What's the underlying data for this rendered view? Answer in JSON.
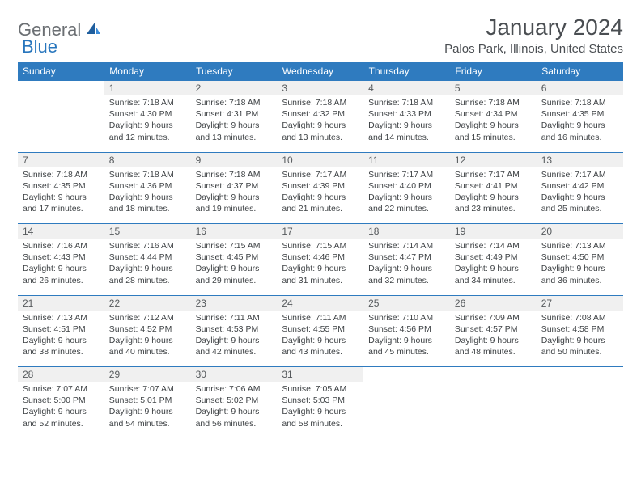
{
  "logo": {
    "gray": "General",
    "blue": "Blue"
  },
  "title": "January 2024",
  "location": "Palos Park, Illinois, United States",
  "colors": {
    "header_bg": "#2f7bbf",
    "header_text": "#ffffff",
    "daynum_bg": "#f0f0f0",
    "border": "#2f7bbf",
    "logo_gray": "#6b6f73",
    "logo_blue": "#2876bd"
  },
  "dayHeaders": [
    "Sunday",
    "Monday",
    "Tuesday",
    "Wednesday",
    "Thursday",
    "Friday",
    "Saturday"
  ],
  "weeks": [
    [
      {
        "num": "",
        "lines": []
      },
      {
        "num": "1",
        "lines": [
          "Sunrise: 7:18 AM",
          "Sunset: 4:30 PM",
          "Daylight: 9 hours and 12 minutes."
        ]
      },
      {
        "num": "2",
        "lines": [
          "Sunrise: 7:18 AM",
          "Sunset: 4:31 PM",
          "Daylight: 9 hours and 13 minutes."
        ]
      },
      {
        "num": "3",
        "lines": [
          "Sunrise: 7:18 AM",
          "Sunset: 4:32 PM",
          "Daylight: 9 hours and 13 minutes."
        ]
      },
      {
        "num": "4",
        "lines": [
          "Sunrise: 7:18 AM",
          "Sunset: 4:33 PM",
          "Daylight: 9 hours and 14 minutes."
        ]
      },
      {
        "num": "5",
        "lines": [
          "Sunrise: 7:18 AM",
          "Sunset: 4:34 PM",
          "Daylight: 9 hours and 15 minutes."
        ]
      },
      {
        "num": "6",
        "lines": [
          "Sunrise: 7:18 AM",
          "Sunset: 4:35 PM",
          "Daylight: 9 hours and 16 minutes."
        ]
      }
    ],
    [
      {
        "num": "7",
        "lines": [
          "Sunrise: 7:18 AM",
          "Sunset: 4:35 PM",
          "Daylight: 9 hours and 17 minutes."
        ]
      },
      {
        "num": "8",
        "lines": [
          "Sunrise: 7:18 AM",
          "Sunset: 4:36 PM",
          "Daylight: 9 hours and 18 minutes."
        ]
      },
      {
        "num": "9",
        "lines": [
          "Sunrise: 7:18 AM",
          "Sunset: 4:37 PM",
          "Daylight: 9 hours and 19 minutes."
        ]
      },
      {
        "num": "10",
        "lines": [
          "Sunrise: 7:17 AM",
          "Sunset: 4:39 PM",
          "Daylight: 9 hours and 21 minutes."
        ]
      },
      {
        "num": "11",
        "lines": [
          "Sunrise: 7:17 AM",
          "Sunset: 4:40 PM",
          "Daylight: 9 hours and 22 minutes."
        ]
      },
      {
        "num": "12",
        "lines": [
          "Sunrise: 7:17 AM",
          "Sunset: 4:41 PM",
          "Daylight: 9 hours and 23 minutes."
        ]
      },
      {
        "num": "13",
        "lines": [
          "Sunrise: 7:17 AM",
          "Sunset: 4:42 PM",
          "Daylight: 9 hours and 25 minutes."
        ]
      }
    ],
    [
      {
        "num": "14",
        "lines": [
          "Sunrise: 7:16 AM",
          "Sunset: 4:43 PM",
          "Daylight: 9 hours and 26 minutes."
        ]
      },
      {
        "num": "15",
        "lines": [
          "Sunrise: 7:16 AM",
          "Sunset: 4:44 PM",
          "Daylight: 9 hours and 28 minutes."
        ]
      },
      {
        "num": "16",
        "lines": [
          "Sunrise: 7:15 AM",
          "Sunset: 4:45 PM",
          "Daylight: 9 hours and 29 minutes."
        ]
      },
      {
        "num": "17",
        "lines": [
          "Sunrise: 7:15 AM",
          "Sunset: 4:46 PM",
          "Daylight: 9 hours and 31 minutes."
        ]
      },
      {
        "num": "18",
        "lines": [
          "Sunrise: 7:14 AM",
          "Sunset: 4:47 PM",
          "Daylight: 9 hours and 32 minutes."
        ]
      },
      {
        "num": "19",
        "lines": [
          "Sunrise: 7:14 AM",
          "Sunset: 4:49 PM",
          "Daylight: 9 hours and 34 minutes."
        ]
      },
      {
        "num": "20",
        "lines": [
          "Sunrise: 7:13 AM",
          "Sunset: 4:50 PM",
          "Daylight: 9 hours and 36 minutes."
        ]
      }
    ],
    [
      {
        "num": "21",
        "lines": [
          "Sunrise: 7:13 AM",
          "Sunset: 4:51 PM",
          "Daylight: 9 hours and 38 minutes."
        ]
      },
      {
        "num": "22",
        "lines": [
          "Sunrise: 7:12 AM",
          "Sunset: 4:52 PM",
          "Daylight: 9 hours and 40 minutes."
        ]
      },
      {
        "num": "23",
        "lines": [
          "Sunrise: 7:11 AM",
          "Sunset: 4:53 PM",
          "Daylight: 9 hours and 42 minutes."
        ]
      },
      {
        "num": "24",
        "lines": [
          "Sunrise: 7:11 AM",
          "Sunset: 4:55 PM",
          "Daylight: 9 hours and 43 minutes."
        ]
      },
      {
        "num": "25",
        "lines": [
          "Sunrise: 7:10 AM",
          "Sunset: 4:56 PM",
          "Daylight: 9 hours and 45 minutes."
        ]
      },
      {
        "num": "26",
        "lines": [
          "Sunrise: 7:09 AM",
          "Sunset: 4:57 PM",
          "Daylight: 9 hours and 48 minutes."
        ]
      },
      {
        "num": "27",
        "lines": [
          "Sunrise: 7:08 AM",
          "Sunset: 4:58 PM",
          "Daylight: 9 hours and 50 minutes."
        ]
      }
    ],
    [
      {
        "num": "28",
        "lines": [
          "Sunrise: 7:07 AM",
          "Sunset: 5:00 PM",
          "Daylight: 9 hours and 52 minutes."
        ]
      },
      {
        "num": "29",
        "lines": [
          "Sunrise: 7:07 AM",
          "Sunset: 5:01 PM",
          "Daylight: 9 hours and 54 minutes."
        ]
      },
      {
        "num": "30",
        "lines": [
          "Sunrise: 7:06 AM",
          "Sunset: 5:02 PM",
          "Daylight: 9 hours and 56 minutes."
        ]
      },
      {
        "num": "31",
        "lines": [
          "Sunrise: 7:05 AM",
          "Sunset: 5:03 PM",
          "Daylight: 9 hours and 58 minutes."
        ]
      },
      {
        "num": "",
        "lines": []
      },
      {
        "num": "",
        "lines": []
      },
      {
        "num": "",
        "lines": []
      }
    ]
  ]
}
